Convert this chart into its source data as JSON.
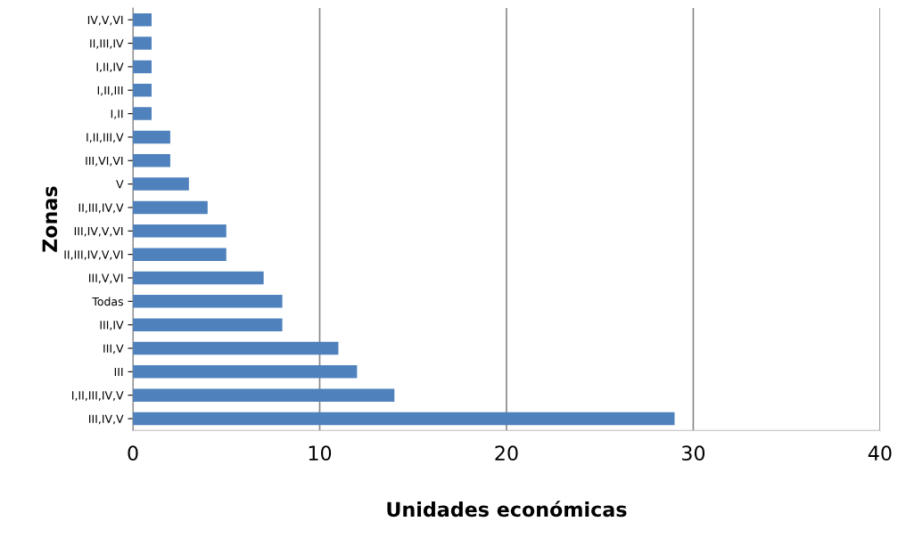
{
  "chart_data": {
    "type": "bar",
    "orientation": "horizontal",
    "xlabel": "Unidades económicas",
    "ylabel": "Zonas",
    "categories": [
      "IV,V,VI",
      "II,III,IV",
      "I,II,IV",
      "I,II,III",
      "I,II",
      "I,II,III,V",
      "III,VI,VI",
      "V",
      "II,III,IV,V",
      "III,IV,V,VI",
      "II,III,IV,V,VI",
      "III,V,VI",
      "Todas",
      "III,IV",
      "III,V",
      "III",
      "I,II,III,IV,V",
      "III,IV,V"
    ],
    "values": [
      1,
      1,
      1,
      1,
      1,
      2,
      2,
      3,
      4,
      5,
      5,
      7,
      8,
      8,
      11,
      12,
      14,
      29
    ],
    "color": "#4f81bd",
    "xlim": [
      0,
      40
    ],
    "xticks": [
      0,
      10,
      20,
      30,
      40
    ],
    "grid": "x",
    "legend": false
  }
}
